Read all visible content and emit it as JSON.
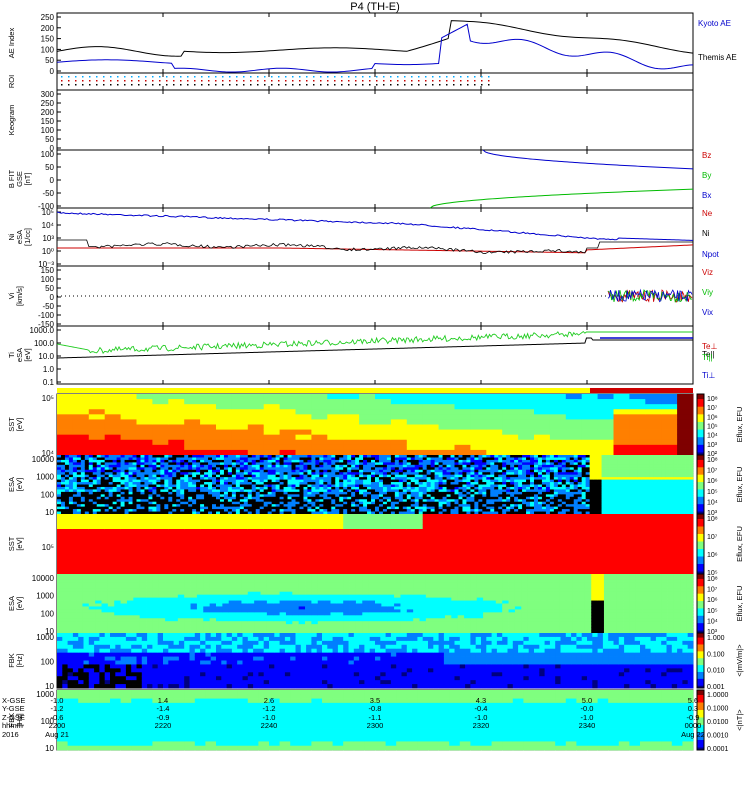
{
  "title": "P4 (TH-E)",
  "colors": {
    "kyoto": "#0000cc",
    "themis": "#000000",
    "bz": "#cc0000",
    "by": "#00bb00",
    "bx": "#0000cc",
    "ne": "#cc0000",
    "ni": "#000000",
    "npot": "#0000cc"
  },
  "chart_data": [
    {
      "type": "line",
      "panel": "ae",
      "ylabel": "AE Index",
      "yticks": [
        "250",
        "200",
        "150",
        "100",
        "50",
        "0"
      ],
      "series": [
        {
          "name": "Kyoto AE"
        },
        {
          "name": "Themis AE"
        }
      ]
    },
    {
      "type": "heatmap",
      "panel": "roi",
      "ylabel": "ROI"
    },
    {
      "type": "heatmap",
      "panel": "keogram",
      "ylabel": "Keogram",
      "yticks": [
        "300",
        "250",
        "200",
        "150",
        "100",
        "50",
        "0"
      ]
    },
    {
      "type": "line",
      "panel": "bfit",
      "ylabel": "B FIT\nGSE\n[nT]",
      "yticks": [
        "100",
        "50",
        "0",
        "-50",
        "-100"
      ],
      "series": [
        {
          "name": "Bz"
        },
        {
          "name": "By"
        },
        {
          "name": "Bx"
        }
      ]
    },
    {
      "type": "line",
      "panel": "density",
      "ylabel": "Ni\neSA\n[1/cc]",
      "yticks": [
        "10⁵",
        "10⁴",
        "10³",
        "10⁰",
        "10⁻³"
      ],
      "series": [
        {
          "name": "Ne"
        },
        {
          "name": "Ni"
        },
        {
          "name": "Npot"
        }
      ]
    },
    {
      "type": "line",
      "panel": "vi",
      "ylabel": "Vi\n[km/s]",
      "yticks": [
        "150",
        "100",
        "50",
        "0",
        "-50",
        "-100",
        "-150"
      ],
      "series": [
        {
          "name": "Viz"
        },
        {
          "name": "Viy"
        },
        {
          "name": "Vix"
        }
      ]
    },
    {
      "type": "line",
      "panel": "ti",
      "ylabel": "Ti\neSA\n[eV]",
      "yticks": [
        "1000.0",
        "100.0",
        "10.0",
        "1.0",
        "0.1"
      ],
      "series": [
        {
          "name": "Te||"
        },
        {
          "name": "Te⊥"
        },
        {
          "name": "Ti||"
        },
        {
          "name": "Ti⊥"
        }
      ]
    },
    {
      "type": "heatmap",
      "panel": "sst_e",
      "ylabel": "SST\n[eV]",
      "yticks": [
        "10⁵",
        "10⁴"
      ],
      "colorbar": [
        "10⁸",
        "10⁷",
        "10⁶",
        "10⁵",
        "10⁴",
        "10³",
        "10²"
      ],
      "cblabel": "Eflux, EFU"
    },
    {
      "type": "heatmap",
      "panel": "esa_e",
      "ylabel": "ESA\n[eV]",
      "yticks": [
        "10000",
        "1000",
        "100",
        "10"
      ],
      "colorbar": [
        "10⁸",
        "10⁷",
        "10⁶",
        "10⁵",
        "10⁴",
        "10³"
      ],
      "cblabel": "Eflux, EFU"
    },
    {
      "type": "heatmap",
      "panel": "sst_i",
      "ylabel": "SST\n[eV]",
      "yticks": [
        "10⁵"
      ],
      "colorbar": [
        "10⁸",
        "10⁷",
        "10⁶",
        "10⁵"
      ],
      "cblabel": "Eflux, EFU"
    },
    {
      "type": "heatmap",
      "panel": "esa_i",
      "ylabel": "ESA\n[eV]",
      "yticks": [
        "10000",
        "1000",
        "100",
        "10"
      ],
      "colorbar": [
        "10⁸",
        "10⁷",
        "10⁶",
        "10⁵",
        "10⁴",
        "10³"
      ],
      "cblabel": "Eflux, EFU"
    },
    {
      "type": "heatmap",
      "panel": "fbk1",
      "ylabel": "FBK\n[Hz]",
      "yticks": [
        "1000",
        "100",
        "10"
      ],
      "colorbar": [
        "1.000",
        "0.100",
        "0.010",
        "0.001"
      ],
      "cblabel": "<|mV/m|>"
    },
    {
      "type": "heatmap",
      "panel": "fbk2",
      "ylabel": "FBK\n[Hz]",
      "yticks": [
        "1000",
        "100",
        "10"
      ],
      "colorbar": [
        "1.0000",
        "0.1000",
        "0.0100",
        "0.0010",
        "0.0001"
      ],
      "cblabel": "<|nT|>"
    }
  ],
  "footer": {
    "rows": [
      "X-GSE",
      "Y-GSE",
      "Z-GSE",
      "hhmm",
      "2016"
    ],
    "ticks": [
      {
        "x": "-1.0",
        "y": "-1.2",
        "z": "-0.6",
        "t": "2200",
        "d": "Aug 21"
      },
      {
        "x": "1.4",
        "y": "-1.4",
        "z": "-0.9",
        "t": "2220",
        "d": ""
      },
      {
        "x": "2.6",
        "y": "-1.2",
        "z": "-1.0",
        "t": "2240",
        "d": ""
      },
      {
        "x": "3.5",
        "y": "-0.8",
        "z": "-1.1",
        "t": "2300",
        "d": ""
      },
      {
        "x": "4.3",
        "y": "-0.4",
        "z": "-1.0",
        "t": "2320",
        "d": ""
      },
      {
        "x": "5.0",
        "y": "-0.0",
        "z": "-1.0",
        "t": "2340",
        "d": ""
      },
      {
        "x": "5.6",
        "y": "0.3",
        "z": "-0.9",
        "t": "0000",
        "d": "Aug 22"
      }
    ]
  }
}
